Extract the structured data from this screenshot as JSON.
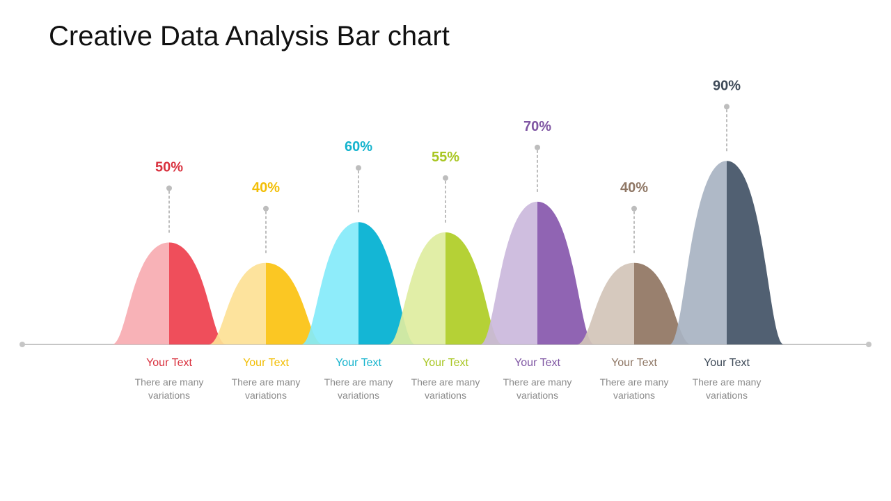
{
  "title": "Creative Data Analysis Bar chart",
  "chart_data": {
    "type": "bar",
    "categories": [
      "Your Text",
      "Your Text",
      "Your Text",
      "Your Text",
      "Your Text",
      "Your Text",
      "Your Text"
    ],
    "values": [
      50,
      40,
      60,
      55,
      70,
      40,
      90
    ],
    "value_labels": [
      "50%",
      "40%",
      "60%",
      "55%",
      "70%",
      "40%",
      "90%"
    ],
    "descriptions": [
      "There are many variations",
      "There are many variations",
      "There are many variations",
      "There are many variations",
      "There are many variations",
      "There are many variations",
      "There are many variations"
    ],
    "ylim": [
      0,
      100
    ],
    "grid": false,
    "legend": "none",
    "colors": {
      "dark": [
        "#ee3f4d",
        "#fbc210",
        "#00b0d1",
        "#afcd25",
        "#8757ad",
        "#907562",
        "#425266"
      ],
      "light": [
        "#f7abb1",
        "#fde195",
        "#84eafa",
        "#deed9f",
        "#cbb8dc",
        "#d2c4b9",
        "#a8b3c2"
      ],
      "text": [
        "#d9323f",
        "#f2be05",
        "#14b3cd",
        "#a8c622",
        "#7f56a3",
        "#8f7765",
        "#3e4a58"
      ],
      "axis": "#c6c6c6",
      "leader": "#bdbdbd"
    }
  }
}
